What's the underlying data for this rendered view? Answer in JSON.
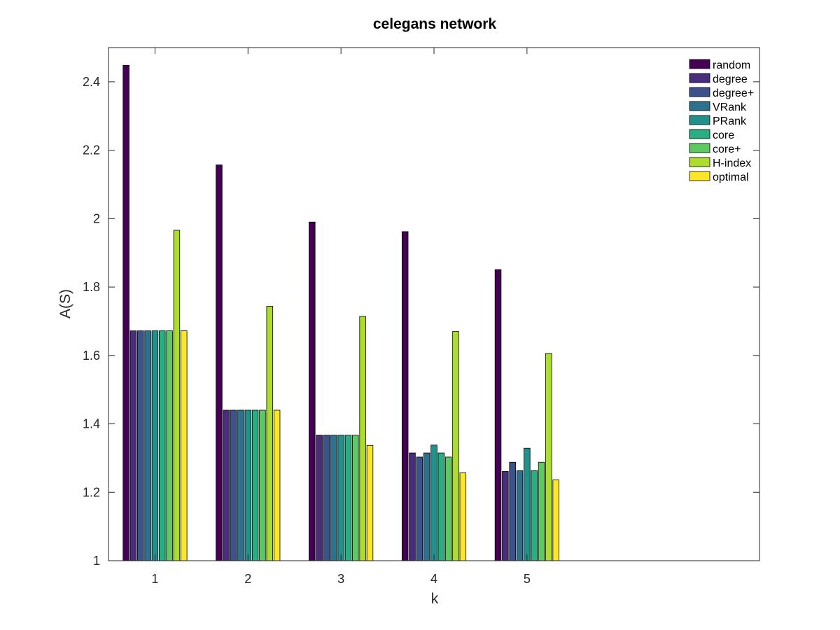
{
  "chart_data": {
    "type": "bar",
    "title": "celegans network",
    "xlabel": "k",
    "ylabel": "A(S)",
    "categories": [
      "1",
      "2",
      "3",
      "4",
      "5"
    ],
    "xlim": [
      0.5,
      7.5
    ],
    "ylim": [
      1,
      2.5
    ],
    "yticks": [
      "1",
      "1.2",
      "1.4",
      "1.6",
      "1.8",
      "2",
      "2.2",
      "2.4"
    ],
    "grid": false,
    "legend_position": "top-right",
    "series": [
      {
        "name": "random",
        "color": "#440154",
        "values": [
          2.448,
          2.157,
          1.99,
          1.962,
          1.851
        ]
      },
      {
        "name": "degree",
        "color": "#472d7b",
        "values": [
          1.672,
          1.44,
          1.367,
          1.315,
          1.261
        ]
      },
      {
        "name": "degree+",
        "color": "#3b528b",
        "values": [
          1.672,
          1.44,
          1.367,
          1.303,
          1.288
        ]
      },
      {
        "name": "VRank",
        "color": "#2c728e",
        "values": [
          1.672,
          1.44,
          1.367,
          1.315,
          1.263
        ]
      },
      {
        "name": "PRank",
        "color": "#21918c",
        "values": [
          1.672,
          1.44,
          1.367,
          1.338,
          1.329
        ]
      },
      {
        "name": "core",
        "color": "#28ae80",
        "values": [
          1.672,
          1.44,
          1.367,
          1.315,
          1.263
        ]
      },
      {
        "name": "core+",
        "color": "#5ec962",
        "values": [
          1.672,
          1.44,
          1.367,
          1.303,
          1.288
        ]
      },
      {
        "name": "H-index",
        "color": "#addc30",
        "values": [
          1.966,
          1.744,
          1.714,
          1.67,
          1.606
        ]
      },
      {
        "name": "optimal",
        "color": "#fde725",
        "values": [
          1.672,
          1.44,
          1.337,
          1.257,
          1.236
        ]
      }
    ]
  }
}
